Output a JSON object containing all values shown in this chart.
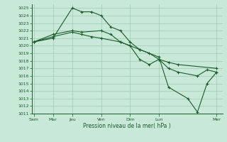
{
  "bg_color": "#c8e8d8",
  "grid_color": "#a0c8b0",
  "line_color": "#1a5c2a",
  "xlabel": "Pression niveau de la mer( hPa )",
  "ylim": [
    1011,
    1025.5
  ],
  "ytick_min": 1011,
  "ytick_max": 1025,
  "xtick_labels": [
    "Sam",
    "Mar",
    "Jeu",
    "Ven",
    "Dim",
    "Lun",
    "Mer"
  ],
  "xtick_positions": [
    0.0,
    1.0,
    2.0,
    3.5,
    5.0,
    6.5,
    9.5
  ],
  "xlim": [
    -0.1,
    9.8
  ],
  "s1_x": [
    0.0,
    1.0,
    2.0,
    2.5,
    3.0,
    3.5,
    4.0,
    4.5,
    5.0,
    5.5,
    6.5,
    7.0,
    8.0,
    8.5,
    9.0,
    9.5
  ],
  "s1_y": [
    1020.5,
    1021.0,
    1025.0,
    1024.5,
    1024.5,
    1024.0,
    1022.5,
    1022.0,
    1020.5,
    1019.5,
    1018.5,
    1014.5,
    1013.0,
    1011.2,
    1015.0,
    1016.5
  ],
  "s2_x": [
    0.0,
    1.0,
    2.0,
    2.5,
    3.5,
    4.0,
    4.5,
    5.0,
    5.5,
    6.0,
    6.5,
    7.0,
    7.5,
    8.5,
    9.0,
    9.5
  ],
  "s2_y": [
    1020.5,
    1021.5,
    1022.0,
    1021.8,
    1022.0,
    1021.5,
    1020.5,
    1020.0,
    1018.2,
    1017.5,
    1018.2,
    1017.0,
    1016.5,
    1016.0,
    1016.8,
    1016.5
  ],
  "s3_x": [
    0.0,
    1.0,
    2.0,
    2.5,
    3.0,
    3.5,
    4.5,
    5.0,
    5.5,
    6.0,
    6.5,
    7.0,
    7.5,
    9.5
  ],
  "s3_y": [
    1020.5,
    1021.2,
    1021.8,
    1021.5,
    1021.2,
    1021.0,
    1020.5,
    1020.0,
    1019.5,
    1019.0,
    1018.2,
    1017.8,
    1017.5,
    1017.0
  ]
}
